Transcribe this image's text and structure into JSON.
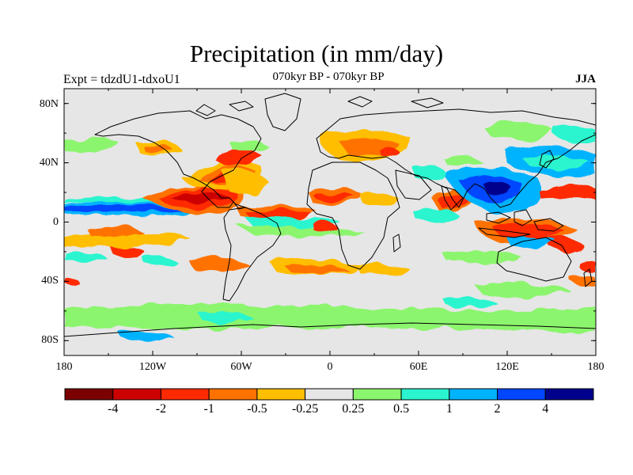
{
  "title": "Precipitation (in mm/day)",
  "subtitle_left": "Expt = tdzdU1-tdxoU1",
  "subtitle_center": "070kyr BP - 070kyr BP",
  "subtitle_right": "JJA",
  "lat_labels": [
    "80N",
    "40N",
    "0",
    "40S",
    "80S"
  ],
  "lon_labels": [
    "180",
    "120W",
    "60W",
    "0",
    "60E",
    "120E",
    "180"
  ],
  "colorbar": {
    "labels": [
      "-4",
      "-2",
      "-1",
      "-0.5",
      "-0.25",
      "0.25",
      "0.5",
      "1",
      "2",
      "4"
    ],
    "colors": [
      "#7b0000",
      "#cc0000",
      "#ff2a00",
      "#ff7200",
      "#ffbe00",
      "#e6e6e6",
      "#8cf56e",
      "#2af5cf",
      "#00b3ff",
      "#0046ff",
      "#00008c"
    ]
  },
  "colors": {
    "neutral": "#e6e6e6",
    "coast": "#000000",
    "frame": "#000000"
  }
}
